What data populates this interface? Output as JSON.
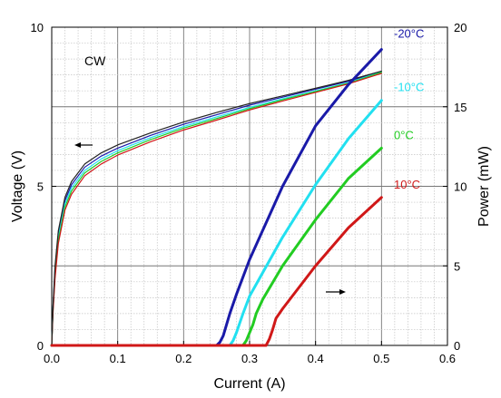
{
  "chart_data": {
    "type": "line",
    "xlabel": "Current (A)",
    "ylabel_left": "Voltage (V)",
    "ylabel_right": "Power (mW)",
    "xlim": [
      0.0,
      0.6
    ],
    "ylim_left": [
      0,
      10
    ],
    "ylim_right": [
      0,
      20
    ],
    "x_ticks": [
      "0.0",
      "0.1",
      "0.2",
      "0.3",
      "0.4",
      "0.5",
      "0.6"
    ],
    "y_left_ticks": [
      "0",
      "5",
      "10"
    ],
    "y_right_ticks": [
      "0",
      "5",
      "10",
      "15",
      "20"
    ],
    "grid": true,
    "annotation": "CW",
    "colors": {
      "-20": "#1a1aa8",
      "-10": "#22e0f0",
      "0": "#22cc22",
      "10": "#d01818",
      "voltage_extra": "#222222"
    },
    "voltage_series": [
      {
        "name": "-20°C",
        "axis": "left",
        "color": "#1a1aa8",
        "x": [
          0.0,
          0.002,
          0.005,
          0.01,
          0.02,
          0.03,
          0.05,
          0.075,
          0.1,
          0.15,
          0.2,
          0.25,
          0.3,
          0.35,
          0.4,
          0.45,
          0.5
        ],
        "y": [
          0.0,
          1.2,
          2.4,
          3.5,
          4.55,
          5.05,
          5.6,
          5.95,
          6.2,
          6.6,
          6.95,
          7.25,
          7.55,
          7.8,
          8.05,
          8.3,
          8.6
        ]
      },
      {
        "name": "-10°C",
        "axis": "left",
        "color": "#22e0f0",
        "x": [
          0.0,
          0.002,
          0.005,
          0.01,
          0.02,
          0.03,
          0.05,
          0.075,
          0.1,
          0.15,
          0.2,
          0.25,
          0.3,
          0.35,
          0.4,
          0.45,
          0.5
        ],
        "y": [
          0.0,
          1.15,
          2.3,
          3.4,
          4.45,
          4.95,
          5.5,
          5.86,
          6.12,
          6.53,
          6.88,
          7.18,
          7.48,
          7.75,
          8.0,
          8.26,
          8.6
        ]
      },
      {
        "name": "0°C",
        "axis": "left",
        "color": "#22cc22",
        "x": [
          0.0,
          0.002,
          0.005,
          0.01,
          0.02,
          0.03,
          0.05,
          0.075,
          0.1,
          0.15,
          0.2,
          0.25,
          0.3,
          0.35,
          0.4,
          0.45,
          0.5
        ],
        "y": [
          0.0,
          1.1,
          2.2,
          3.3,
          4.35,
          4.85,
          5.42,
          5.78,
          6.05,
          6.47,
          6.83,
          7.13,
          7.44,
          7.72,
          7.98,
          8.24,
          8.58
        ]
      },
      {
        "name": "10°C",
        "axis": "left",
        "color": "#d01818",
        "x": [
          0.0,
          0.002,
          0.005,
          0.01,
          0.02,
          0.03,
          0.05,
          0.075,
          0.1,
          0.15,
          0.2,
          0.25,
          0.3,
          0.35,
          0.4,
          0.45,
          0.5
        ],
        "y": [
          0.0,
          1.05,
          2.1,
          3.2,
          4.25,
          4.75,
          5.33,
          5.7,
          5.98,
          6.4,
          6.77,
          7.08,
          7.4,
          7.68,
          7.95,
          8.22,
          8.55
        ]
      },
      {
        "name": "",
        "axis": "left",
        "color": "#222222",
        "x": [
          0.0,
          0.002,
          0.005,
          0.01,
          0.02,
          0.03,
          0.05,
          0.075,
          0.1,
          0.15,
          0.2,
          0.25,
          0.3,
          0.35,
          0.4,
          0.45,
          0.5
        ],
        "y": [
          0.0,
          1.25,
          2.5,
          3.6,
          4.65,
          5.15,
          5.7,
          6.05,
          6.3,
          6.68,
          7.02,
          7.32,
          7.6,
          7.84,
          8.08,
          8.33,
          8.62
        ]
      }
    ],
    "power_series": [
      {
        "name": "-20°C",
        "axis": "right",
        "color": "#1a1aa8",
        "x": [
          0.0,
          0.1,
          0.2,
          0.25,
          0.255,
          0.26,
          0.265,
          0.27,
          0.28,
          0.3,
          0.35,
          0.4,
          0.45,
          0.5
        ],
        "y": [
          0.0,
          0.0,
          0.0,
          0.0,
          0.2,
          0.6,
          1.3,
          2.0,
          3.2,
          5.4,
          10.0,
          13.8,
          16.4,
          18.6
        ]
      },
      {
        "name": "-10°C",
        "axis": "right",
        "color": "#22e0f0",
        "x": [
          0.0,
          0.1,
          0.2,
          0.27,
          0.275,
          0.28,
          0.285,
          0.29,
          0.3,
          0.35,
          0.4,
          0.45,
          0.5
        ],
        "y": [
          0.0,
          0.0,
          0.0,
          0.0,
          0.3,
          0.8,
          1.4,
          2.0,
          3.1,
          6.8,
          10.1,
          13.0,
          15.4
        ]
      },
      {
        "name": "0°C",
        "axis": "right",
        "color": "#22cc22",
        "x": [
          0.0,
          0.1,
          0.2,
          0.29,
          0.295,
          0.3,
          0.305,
          0.31,
          0.32,
          0.35,
          0.4,
          0.45,
          0.5
        ],
        "y": [
          0.0,
          0.0,
          0.0,
          0.0,
          0.3,
          0.8,
          1.3,
          2.0,
          2.9,
          5.0,
          7.9,
          10.5,
          12.4
        ]
      },
      {
        "name": "10°C",
        "axis": "right",
        "color": "#d01818",
        "x": [
          0.0,
          0.1,
          0.2,
          0.3,
          0.325,
          0.33,
          0.335,
          0.34,
          0.35,
          0.4,
          0.45,
          0.5
        ],
        "y": [
          0.0,
          0.0,
          0.0,
          0.0,
          0.0,
          0.4,
          1.0,
          1.7,
          2.3,
          5.0,
          7.4,
          9.3
        ]
      }
    ]
  }
}
